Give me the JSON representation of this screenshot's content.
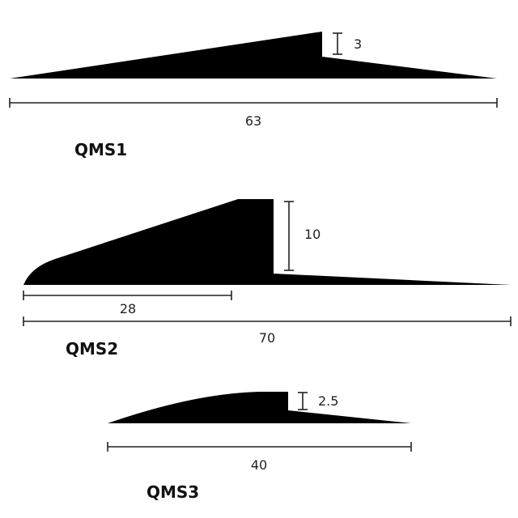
{
  "profiles": [
    {
      "title": "QMS1",
      "height_label": "3",
      "length_label": "63"
    },
    {
      "title": "QMS2",
      "height_label": "10",
      "partial_length_label": "28",
      "length_label": "70"
    },
    {
      "title": "QMS3",
      "height_label": "2.5",
      "length_label": "40"
    }
  ],
  "colors": {
    "profile_fill": "#000000",
    "dimension_line": "#222222"
  }
}
